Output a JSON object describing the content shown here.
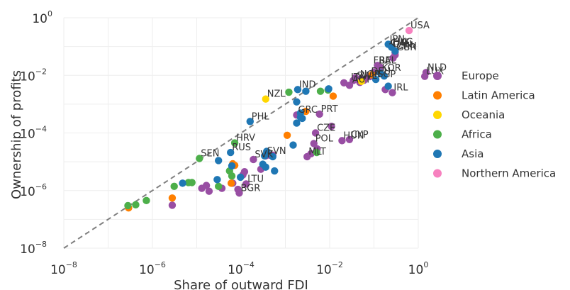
{
  "chart_data": {
    "type": "scatter",
    "xlabel": "Share of outward FDI",
    "ylabel": "Ownership of profits",
    "xscale": "log",
    "yscale": "log",
    "xlim": [
      1e-08,
      1
    ],
    "ylim": [
      1e-08,
      1
    ],
    "grid": true,
    "legend_position": "right",
    "reference_line": {
      "style": "dashed",
      "color": "#808080",
      "points": [
        [
          1e-08,
          1e-08
        ],
        [
          1,
          1
        ]
      ]
    },
    "x_ticks": [
      {
        "value": 1e-08,
        "base": "10",
        "exp": "−8"
      },
      {
        "value": 1e-06,
        "base": "10",
        "exp": "−6"
      },
      {
        "value": 0.0001,
        "base": "10",
        "exp": "−4"
      },
      {
        "value": 0.01,
        "base": "10",
        "exp": "−2"
      },
      {
        "value": 1,
        "base": "10",
        "exp": "0"
      }
    ],
    "y_ticks": [
      {
        "value": 1e-08,
        "base": "10",
        "exp": "−8"
      },
      {
        "value": 1e-06,
        "base": "10",
        "exp": "−6"
      },
      {
        "value": 0.0001,
        "base": "10",
        "exp": "−4"
      },
      {
        "value": 0.01,
        "base": "10",
        "exp": "−2"
      },
      {
        "value": 1,
        "base": "10",
        "exp": "0"
      }
    ],
    "series": [
      {
        "name": "Europe",
        "color": "#984ea3",
        "points": [
          {
            "x": 0.3,
            "y": 0.062,
            "label": "GBR"
          },
          {
            "x": 0.3,
            "y": 0.051
          },
          {
            "x": 0.27,
            "y": 0.04
          },
          {
            "x": 0.12,
            "y": 0.022,
            "label": "BEL"
          },
          {
            "x": 0.14,
            "y": 0.019
          },
          {
            "x": 0.1,
            "y": 0.013
          },
          {
            "x": 0.08,
            "y": 0.009,
            "label": "DEU"
          },
          {
            "x": 1.5,
            "y": 0.0125,
            "label": "NLD"
          },
          {
            "x": 1.4,
            "y": 0.0092,
            "label": "LUX"
          },
          {
            "x": 0.038,
            "y": 0.0083
          },
          {
            "x": 0.05,
            "y": 0.0075
          },
          {
            "x": 0.06,
            "y": 0.0068
          },
          {
            "x": 0.034,
            "y": 0.0066
          },
          {
            "x": 0.048,
            "y": 0.0057
          },
          {
            "x": 0.021,
            "y": 0.0055
          },
          {
            "x": 0.028,
            "y": 0.0045
          },
          {
            "x": 0.26,
            "y": 0.0025,
            "label": "IRL"
          },
          {
            "x": 0.18,
            "y": 0.0032
          },
          {
            "x": 0.0018,
            "y": 0.00042,
            "label": "GRC"
          },
          {
            "x": 0.0059,
            "y": 0.00045,
            "label": "PRT"
          },
          {
            "x": 0.0048,
            "y": 0.0001,
            "label": "CZE"
          },
          {
            "x": 0.011,
            "y": 0.00017
          },
          {
            "x": 0.0044,
            "y": 4.3e-05,
            "label": "POL"
          },
          {
            "x": 0.0052,
            "y": 2.8e-05
          },
          {
            "x": 0.019,
            "y": 5.4e-05,
            "label": "HUN"
          },
          {
            "x": 0.028,
            "y": 5.9e-05,
            "label": "CYP"
          },
          {
            "x": 0.0031,
            "y": 1.5e-05,
            "label": "MLT"
          },
          {
            "x": 0.0038,
            "y": 1.9e-05
          },
          {
            "x": 0.00036,
            "y": 1.6e-05,
            "label": "SVN"
          },
          {
            "x": 0.00044,
            "y": 1.7e-05
          },
          {
            "x": 0.00052,
            "y": 1.7e-05
          },
          {
            "x": 0.00019,
            "y": 1.2e-05,
            "label": "SVK"
          },
          {
            "x": 0.00028,
            "y": 5.5e-06
          },
          {
            "x": 0.00012,
            "y": 4.5e-06
          },
          {
            "x": 0.00011,
            "y": 3.5e-06
          },
          {
            "x": 6.5e-05,
            "y": 1.8e-06
          },
          {
            "x": 1.65e-05,
            "y": 1.5e-06
          },
          {
            "x": 1.3e-05,
            "y": 1.2e-06
          },
          {
            "x": 1.9e-05,
            "y": 9.5e-07
          },
          {
            "x": 3.7e-05,
            "y": 1.2e-06
          },
          {
            "x": 8.5e-05,
            "y": 1.1e-06
          },
          {
            "x": 0.00013,
            "y": 1.7e-06,
            "label": "LTU"
          },
          {
            "x": 9.1e-05,
            "y": 8.2e-07,
            "label": "BGR"
          },
          {
            "x": 2.8e-06,
            "y": 3.1e-07
          }
        ]
      },
      {
        "name": "Latin America",
        "color": "#ff7f00",
        "points": [
          {
            "x": 0.09,
            "y": 0.0105
          },
          {
            "x": 0.012,
            "y": 0.0019
          },
          {
            "x": 0.0029,
            "y": 0.00056
          },
          {
            "x": 0.0011,
            "y": 8.3e-05
          },
          {
            "x": 6.5e-05,
            "y": 8.5e-06
          },
          {
            "x": 7.2e-05,
            "y": 7.5e-06
          },
          {
            "x": 6e-05,
            "y": 1.8e-06
          },
          {
            "x": 2.8e-06,
            "y": 5.5e-07
          },
          {
            "x": 2.9e-07,
            "y": 2.5e-07
          }
        ]
      },
      {
        "name": "Oceania",
        "color": "#ffd700",
        "points": [
          {
            "x": 0.00036,
            "y": 0.0015,
            "label": "NZL"
          },
          {
            "x": 0.052,
            "y": 0.0062
          }
        ]
      },
      {
        "name": "Africa",
        "color": "#4daf4a",
        "points": [
          {
            "x": 7.2e-05,
            "y": 4.5e-05,
            "label": "HRV"
          },
          {
            "x": 0.0051,
            "y": 2.1e-05
          },
          {
            "x": 1.15e-05,
            "y": 1.3e-05,
            "label": "SEN"
          },
          {
            "x": 0.0012,
            "y": 0.0026
          },
          {
            "x": 0.0062,
            "y": 0.0028
          },
          {
            "x": 0.0092,
            "y": 0.0031
          },
          {
            "x": 5.5e-05,
            "y": 4.8e-06
          },
          {
            "x": 6.2e-05,
            "y": 3.2e-06
          },
          {
            "x": 6.5e-06,
            "y": 1.9e-06
          },
          {
            "x": 7.8e-06,
            "y": 1.9e-06
          },
          {
            "x": 3.1e-06,
            "y": 1.4e-06
          },
          {
            "x": 3.1e-05,
            "y": 1.4e-06
          },
          {
            "x": 7.3e-07,
            "y": 4.5e-07
          },
          {
            "x": 2.8e-07,
            "y": 3e-07
          },
          {
            "x": 4.2e-07,
            "y": 3.2e-07
          }
        ]
      },
      {
        "name": "Asia",
        "color": "#1f77b4",
        "points": [
          {
            "x": 0.21,
            "y": 0.12,
            "label": "JPN"
          },
          {
            "x": 0.25,
            "y": 0.095,
            "label": "HKG"
          },
          {
            "x": 0.3,
            "y": 0.07,
            "label": "CHN"
          },
          {
            "x": 0.14,
            "y": 0.012,
            "label": "KOR"
          },
          {
            "x": 0.17,
            "y": 0.0095
          },
          {
            "x": 0.11,
            "y": 0.0072,
            "label": "SGP"
          },
          {
            "x": 0.21,
            "y": 0.0042
          },
          {
            "x": 0.0019,
            "y": 0.0032,
            "label": "IND"
          },
          {
            "x": 0.0029,
            "y": 0.0028
          },
          {
            "x": 0.0095,
            "y": 0.0034
          },
          {
            "x": 0.0018,
            "y": 0.0012
          },
          {
            "x": 0.0022,
            "y": 0.00049
          },
          {
            "x": 0.0024,
            "y": 0.00032
          },
          {
            "x": 0.0022,
            "y": 0.00035
          },
          {
            "x": 0.00016,
            "y": 0.00025,
            "label": "PHL"
          },
          {
            "x": 0.0018,
            "y": 0.00022
          },
          {
            "x": 0.00034,
            "y": 1.6e-05
          },
          {
            "x": 5.8e-05,
            "y": 2.1e-05,
            "label": "RUS"
          },
          {
            "x": 6.2e-05,
            "y": 7.2e-06
          },
          {
            "x": 3.1e-05,
            "y": 1.1e-05
          },
          {
            "x": 0.00057,
            "y": 4.8e-06
          },
          {
            "x": 2.9e-05,
            "y": 2.4e-06
          },
          {
            "x": 4.8e-06,
            "y": 1.8e-06
          },
          {
            "x": 9.7e-05,
            "y": 2.9e-06
          },
          {
            "x": 0.00036,
            "y": 6.5e-06
          },
          {
            "x": 0.00031,
            "y": 8.2e-06
          },
          {
            "x": 0.0015,
            "y": 3.8e-05
          },
          {
            "x": 0.00038,
            "y": 2.3e-05
          },
          {
            "x": 0.00052,
            "y": 1.5e-05
          }
        ]
      },
      {
        "name": "Northern America",
        "color": "#f781bf",
        "points": [
          {
            "x": 0.62,
            "y": 0.36,
            "label": "USA"
          }
        ]
      }
    ],
    "unassigned_labels": [
      {
        "x": 0.028,
        "y": 0.0058,
        "text": "ITA"
      },
      {
        "x": 0.03,
        "y": 0.0047,
        "text": "AUT"
      },
      {
        "x": 0.09,
        "y": 0.022,
        "text": "FRA"
      },
      {
        "x": 0.24,
        "y": 0.08,
        "text": "CAN"
      },
      {
        "x": 0.038,
        "y": 0.0065,
        "text": "SWE"
      },
      {
        "x": 0.045,
        "y": 0.0072,
        "text": "NOR"
      },
      {
        "x": 0.22,
        "y": 0.09,
        "text": "CHE"
      }
    ]
  }
}
